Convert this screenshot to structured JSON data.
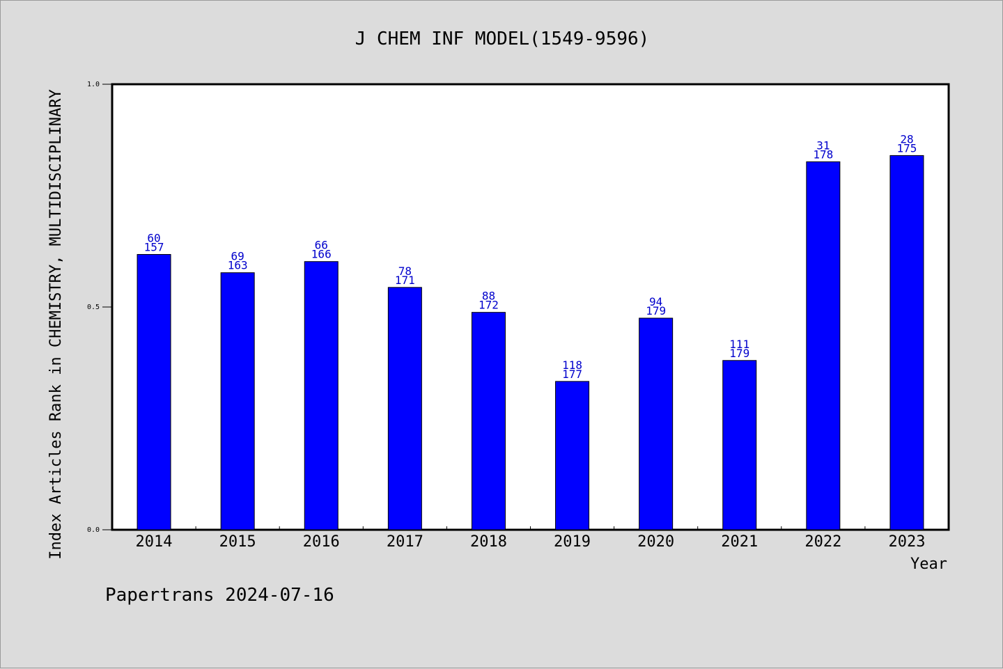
{
  "chart_data": {
    "type": "bar",
    "title": "J CHEM INF MODEL(1549-9596)",
    "xlabel": "Year",
    "ylabel": "Index Articles Rank in CHEMISTRY, MULTIDISCIPLINARY",
    "ylim": [
      0,
      1.0
    ],
    "yticks": [
      "0.0",
      "0.5",
      "1.0"
    ],
    "grid": false,
    "bar_color": "#0000ff",
    "label_color": "#0000cc",
    "categories": [
      "2014",
      "2015",
      "2016",
      "2017",
      "2018",
      "2019",
      "2020",
      "2021",
      "2022",
      "2023"
    ],
    "values": [
      0.618,
      0.577,
      0.602,
      0.544,
      0.488,
      0.333,
      0.475,
      0.38,
      0.826,
      0.84
    ],
    "labels": [
      [
        "60",
        "157"
      ],
      [
        "69",
        "163"
      ],
      [
        "66",
        "166"
      ],
      [
        "78",
        "171"
      ],
      [
        "88",
        "172"
      ],
      [
        "118",
        "177"
      ],
      [
        "94",
        "179"
      ],
      [
        "111",
        "179"
      ],
      [
        "31",
        "178"
      ],
      [
        "28",
        "175"
      ]
    ]
  },
  "footer": {
    "text": "Papertrans 2024-07-16"
  }
}
